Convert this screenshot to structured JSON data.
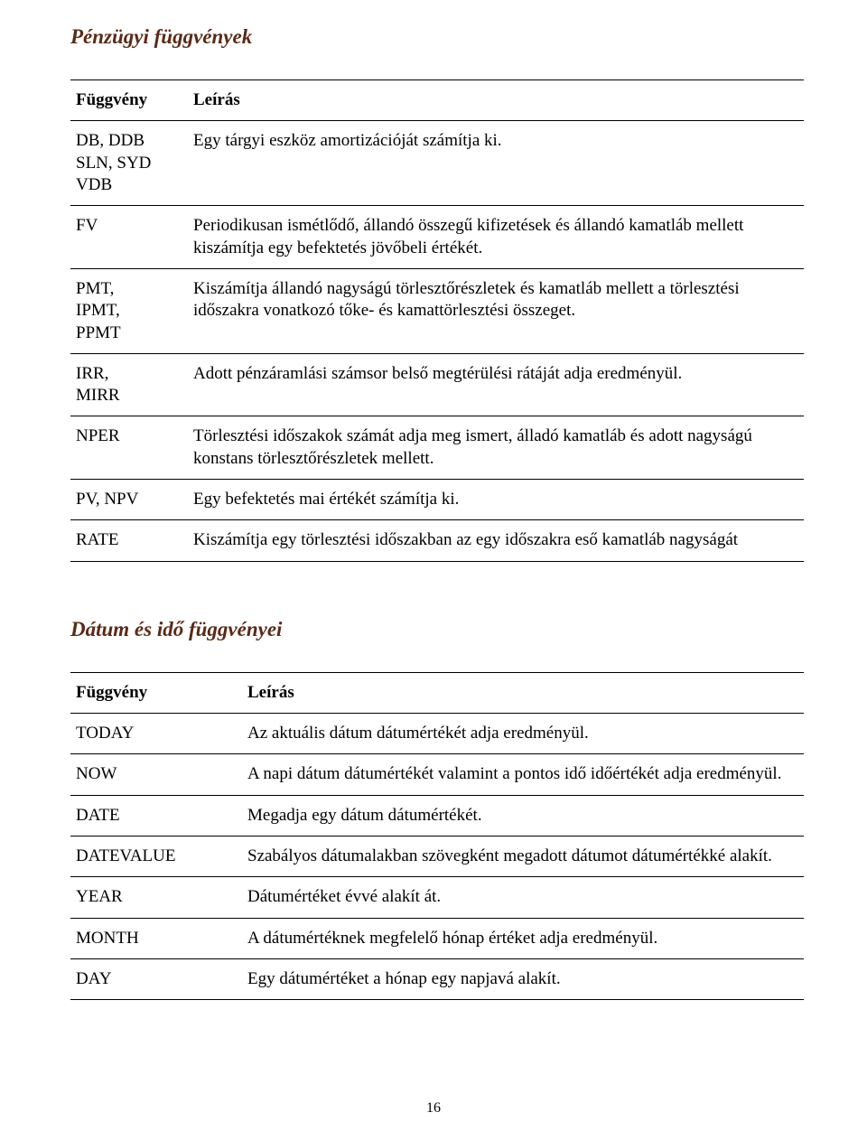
{
  "page_number": "16",
  "section1": {
    "title": "Pénzügyi függvények",
    "header": {
      "col1": "Függvény",
      "col2": "Leírás"
    },
    "rows": [
      {
        "fn": "DB, DDB\nSLN, SYD\nVDB",
        "desc": "Egy tárgyi eszköz amortizációját számítja ki."
      },
      {
        "fn": "FV",
        "desc": "Periodikusan ismétlődő, állandó összegű kifizetések és állandó kamatláb mellett kiszámítja egy befektetés jövőbeli értékét."
      },
      {
        "fn": "PMT,\nIPMT,\nPPMT",
        "desc": "Kiszámítja állandó nagyságú törlesztőrészletek és kamatláb mellett a törlesztési időszakra vonatkozó tőke- és kamattörlesztési összeget."
      },
      {
        "fn": "IRR,\nMIRR",
        "desc": "Adott pénzáramlási számsor belső megtérülési rátáját adja eredményül."
      },
      {
        "fn": "NPER",
        "desc": "Törlesztési időszakok számát adja meg ismert, álladó kamatláb és adott nagyságú konstans törlesztőrészletek mellett."
      },
      {
        "fn": "PV, NPV",
        "desc": "Egy befektetés mai értékét számítja ki."
      },
      {
        "fn": "RATE",
        "desc": "Kiszámítja egy törlesztési időszakban az egy időszakra eső kamatláb nagyságát"
      }
    ]
  },
  "section2": {
    "title": "Dátum és idő függvényei",
    "header": {
      "col1": "Függvény",
      "col2": "Leírás"
    },
    "rows": [
      {
        "fn": "TODAY",
        "desc": "Az aktuális dátum  dátumértékét adja eredményül."
      },
      {
        "fn": "NOW",
        "desc": "A napi dátum dátumértékét valamint a pontos idő időértékét adja eredményül."
      },
      {
        "fn": "DATE",
        "desc": "Megadja egy dátum dátumértékét."
      },
      {
        "fn": "DATEVALUE",
        "desc": "Szabályos dátumalakban szövegként megadott dátumot dátumértékké alakít."
      },
      {
        "fn": "YEAR",
        "desc": "Dátumértéket évvé alakít át."
      },
      {
        "fn": "MONTH",
        "desc": "A dátumértéknek megfelelő hónap értéket adja eredményül."
      },
      {
        "fn": "DAY",
        "desc": "Egy dátumértéket a hónap egy napjavá alakít."
      }
    ]
  }
}
